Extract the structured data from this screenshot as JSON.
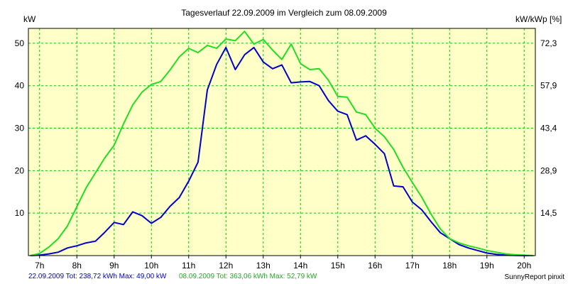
{
  "chart_data": {
    "type": "line",
    "title": "Tagesverlauf 22.09.2009 im Vergleich zum 08.09.2009",
    "ylabel_left": "kW",
    "ylabel_right": "kW/kWp [%]",
    "xlim": [
      6.7,
      20.3
    ],
    "ylim": [
      0,
      53.5
    ],
    "x_ticks": [
      "7h",
      "8h",
      "9h",
      "10h",
      "11h",
      "12h",
      "13h",
      "14h",
      "15h",
      "16h",
      "17h",
      "18h",
      "19h",
      "20h"
    ],
    "y_ticks": [
      10,
      20,
      30,
      40,
      50
    ],
    "y_right_ticks": [
      "14,5",
      "28,9",
      "43,4",
      "57,9",
      "72,3"
    ],
    "grid": true,
    "series": [
      {
        "name": "22.09.2009",
        "color": "#0000cc",
        "x": [
          6.75,
          7.0,
          7.25,
          7.5,
          7.75,
          8.0,
          8.25,
          8.5,
          8.75,
          9.0,
          9.25,
          9.5,
          9.75,
          10.0,
          10.25,
          10.5,
          10.75,
          11.0,
          11.25,
          11.5,
          11.75,
          12.0,
          12.25,
          12.5,
          12.75,
          13.0,
          13.25,
          13.5,
          13.75,
          14.0,
          14.25,
          14.5,
          14.75,
          15.0,
          15.25,
          15.5,
          15.75,
          16.0,
          16.25,
          16.5,
          16.75,
          17.0,
          17.25,
          17.5,
          17.75,
          18.0,
          18.25,
          18.5,
          18.75,
          19.0,
          19.25,
          19.5,
          19.75,
          20.0,
          20.25
        ],
        "values": [
          0,
          0.1,
          0.4,
          0.8,
          1.8,
          2.3,
          3.0,
          3.4,
          5.5,
          7.8,
          7.3,
          10.3,
          9.4,
          7.6,
          9.0,
          11.6,
          13.7,
          17.5,
          22.0,
          39.0,
          45.0,
          49.0,
          43.8,
          47.3,
          49.0,
          45.6,
          44.0,
          44.9,
          40.7,
          40.9,
          41.0,
          40.0,
          36.5,
          34.0,
          33.2,
          27.2,
          28.2,
          26.2,
          24.0,
          16.4,
          16.2,
          12.6,
          10.8,
          8.0,
          5.4,
          4.0,
          2.6,
          1.8,
          1.2,
          0.6,
          0.3,
          0.1,
          0.05,
          0,
          0
        ]
      },
      {
        "name": "08.09.2009",
        "color": "#22dd22",
        "x": [
          6.75,
          7.0,
          7.25,
          7.5,
          7.75,
          8.0,
          8.25,
          8.5,
          8.75,
          9.0,
          9.25,
          9.5,
          9.75,
          10.0,
          10.25,
          10.5,
          10.75,
          11.0,
          11.25,
          11.5,
          11.75,
          12.0,
          12.25,
          12.5,
          12.75,
          13.0,
          13.25,
          13.5,
          13.75,
          14.0,
          14.25,
          14.5,
          14.75,
          15.0,
          15.25,
          15.5,
          15.75,
          16.0,
          16.25,
          16.5,
          16.75,
          17.0,
          17.25,
          17.5,
          17.75,
          18.0,
          18.25,
          18.5,
          18.75,
          19.0,
          19.25,
          19.5,
          19.75,
          20.0,
          20.25
        ],
        "values": [
          0,
          0.5,
          2.0,
          4.0,
          7.0,
          11.5,
          16.0,
          19.5,
          23.0,
          26.0,
          31.0,
          35.5,
          38.5,
          40.3,
          41.0,
          43.7,
          46.8,
          48.8,
          47.8,
          49.5,
          48.8,
          51.0,
          50.6,
          52.8,
          49.8,
          50.9,
          48.4,
          46.2,
          49.8,
          45.2,
          43.8,
          44.0,
          41.3,
          37.5,
          37.3,
          33.8,
          33.2,
          30.0,
          28.0,
          25.0,
          20.8,
          17.2,
          13.8,
          9.8,
          6.3,
          4.0,
          3.0,
          2.3,
          1.8,
          1.2,
          0.8,
          0.4,
          0.2,
          0.1,
          0
        ]
      }
    ],
    "footer_left": "22.09.2009 Tot: 238,72 kWh Max: 49,00 kW",
    "footer_right": "08.09.2009 Tot: 363,06 kWh Max: 52,79 kW",
    "credit": "SunnyReport pinxit"
  },
  "colors": {
    "plot_background": "#ffffc8",
    "grid": "#00cc00",
    "axis": "#000000"
  }
}
